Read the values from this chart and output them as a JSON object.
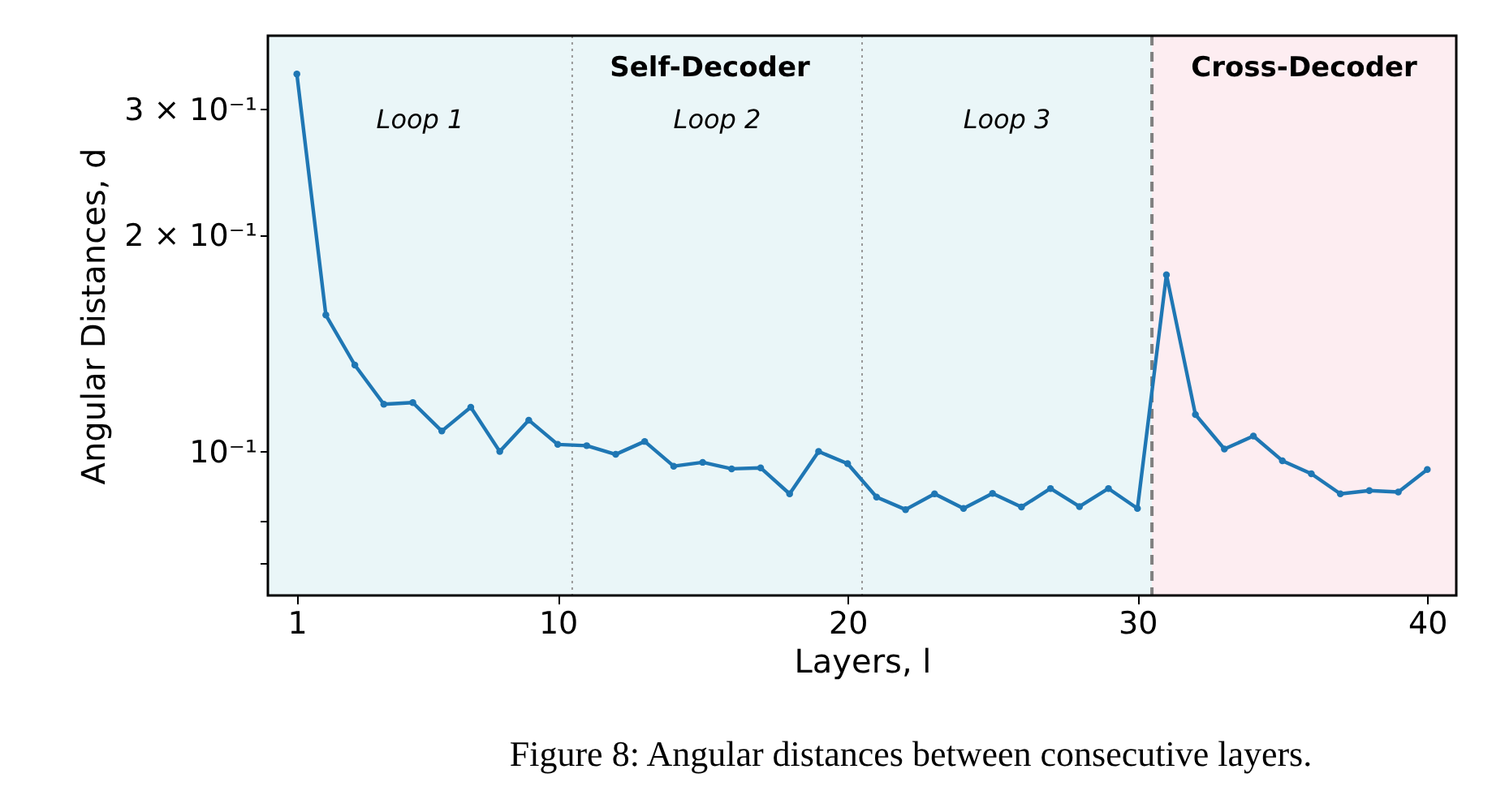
{
  "chart_data": {
    "type": "line",
    "xlabel": "Layers, l",
    "ylabel": "Angular Distances, d",
    "log": "y",
    "x": [
      1,
      2,
      3,
      4,
      5,
      6,
      7,
      8,
      9,
      10,
      11,
      12,
      13,
      14,
      15,
      16,
      17,
      18,
      19,
      20,
      21,
      22,
      23,
      24,
      25,
      26,
      27,
      28,
      29,
      30,
      31,
      32,
      33,
      34,
      35,
      36,
      37,
      38,
      39,
      40
    ],
    "series": [
      {
        "color": "#1f77b4",
        "values": [
          0.336,
          0.155,
          0.132,
          0.1164,
          0.117,
          0.1068,
          0.1153,
          0.1,
          0.1106,
          0.1023,
          0.1019,
          0.0991,
          0.1033,
          0.0954,
          0.0966,
          0.0946,
          0.0949,
          0.0873,
          0.1,
          0.0962,
          0.0864,
          0.083,
          0.0873,
          0.0833,
          0.0874,
          0.0837,
          0.0888,
          0.0838,
          0.0888,
          0.0833,
          0.1764,
          0.1126,
          0.1008,
          0.1051,
          0.0971,
          0.0931,
          0.0873,
          0.0882,
          0.0878,
          0.0944
        ]
      }
    ],
    "marker": "circle",
    "line_style": "solid",
    "xlim": [
      0,
      41
    ],
    "xticks": [
      1,
      10,
      20,
      30,
      40
    ],
    "ylim": [
      0.063,
      0.38
    ],
    "yticks": [
      {
        "value": 0.07,
        "label": null
      },
      {
        "value": 0.08,
        "label": null
      },
      {
        "value": 0.1,
        "label": "10⁻¹"
      },
      {
        "value": 0.2,
        "label": "2 × 10⁻¹"
      },
      {
        "value": 0.3,
        "label": "3 × 10⁻¹"
      }
    ],
    "bands": [
      {
        "axis": "x",
        "from": 0,
        "to": 30.5,
        "label": "Self-Decoder",
        "color": "#eaf6f8"
      },
      {
        "axis": "x",
        "from": 30.5,
        "to": 41,
        "label": "Cross-Decoder",
        "color": "#fdedf1"
      }
    ],
    "ref_lines": [
      {
        "axis": "x",
        "value": 10.5,
        "line_style": "dotted",
        "color": "#999999"
      },
      {
        "axis": "x",
        "value": 20.5,
        "line_style": "dotted",
        "color": "#999999"
      },
      {
        "axis": "x",
        "value": 30.5,
        "line_style": "dashed",
        "color": "#808080"
      }
    ],
    "annotations": [
      "Loop 1",
      "Loop 2",
      "Loop 3",
      "Figure 8: Angular distances between consecutive layers."
    ]
  }
}
